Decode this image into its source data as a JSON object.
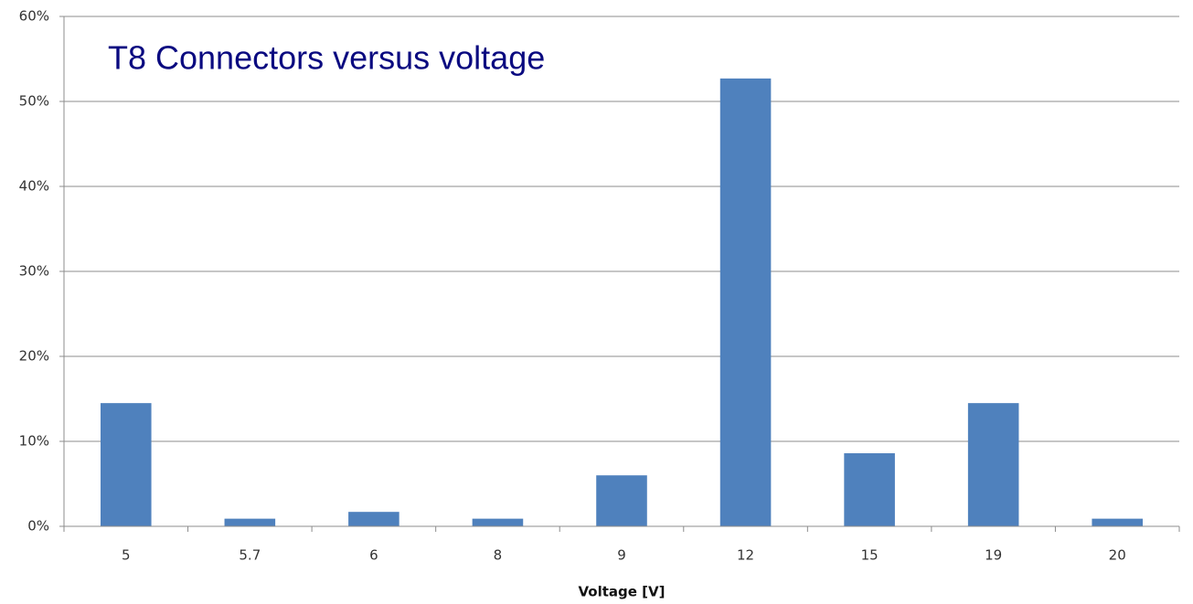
{
  "chart_data": {
    "type": "bar",
    "title": "T8 Connectors versus voltage",
    "x_label": "Voltage [V]",
    "categories": [
      "5",
      "5.7",
      "6",
      "8",
      "9",
      "12",
      "15",
      "19",
      "20"
    ],
    "values": [
      14.5,
      0.9,
      1.7,
      0.9,
      6.0,
      52.7,
      8.6,
      14.5,
      0.9
    ],
    "color": "#4f81bd",
    "ylim": [
      0,
      60
    ],
    "yticks": [
      {
        "value": 0,
        "label": "0%"
      },
      {
        "value": 10,
        "label": "10%"
      },
      {
        "value": 20,
        "label": "20%"
      },
      {
        "value": 30,
        "label": "30%"
      },
      {
        "value": 40,
        "label": "40%"
      },
      {
        "value": 50,
        "label": "50%"
      },
      {
        "value": 60,
        "label": "60%"
      }
    ],
    "grid": true
  }
}
